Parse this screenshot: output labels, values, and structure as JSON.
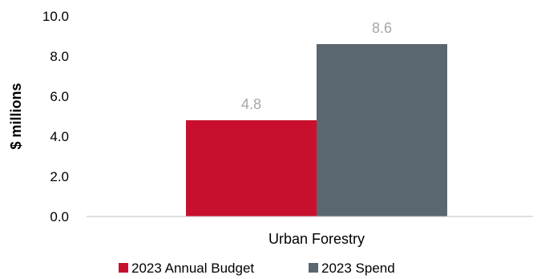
{
  "chart_data": {
    "type": "bar",
    "categories": [
      "Urban Forestry"
    ],
    "series": [
      {
        "name": "2023 Annual Budget",
        "values": [
          4.8
        ],
        "color": "#c8102e"
      },
      {
        "name": "2023 Spend",
        "values": [
          8.6
        ],
        "color": "#5a6670"
      }
    ],
    "ylabel": "$ millions",
    "ylim": [
      0,
      10
    ],
    "yticks": [
      "0.0",
      "2.0",
      "4.0",
      "6.0",
      "8.0",
      "10.0"
    ],
    "data_labels": [
      "4.8",
      "8.6"
    ],
    "legend_position": "bottom",
    "grid": false
  }
}
